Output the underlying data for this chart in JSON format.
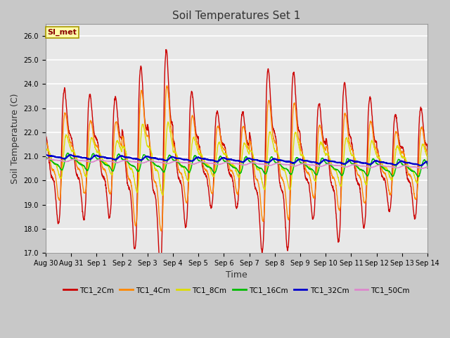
{
  "title": "Soil Temperatures Set 1",
  "xlabel": "Time",
  "ylabel": "Soil Temperature (C)",
  "ylim": [
    17.0,
    26.5
  ],
  "yticks": [
    17.0,
    18.0,
    19.0,
    20.0,
    21.0,
    22.0,
    23.0,
    24.0,
    25.0,
    26.0
  ],
  "xtick_labels": [
    "Aug 30",
    "Aug 31",
    "Sep 1",
    "Sep 2",
    "Sep 3",
    "Sep 4",
    "Sep 5",
    "Sep 6",
    "Sep 7",
    "Sep 8",
    "Sep 9",
    "Sep 10",
    "Sep 11",
    "Sep 12",
    "Sep 13",
    "Sep 14"
  ],
  "annotation_text": "SI_met",
  "fig_facecolor": "#c8c8c8",
  "plot_facecolor": "#e8e8e8",
  "series": [
    {
      "label": "TC1_2Cm",
      "color": "#cc0000",
      "lw": 1.0
    },
    {
      "label": "TC1_4Cm",
      "color": "#ff8800",
      "lw": 1.0
    },
    {
      "label": "TC1_8Cm",
      "color": "#dddd00",
      "lw": 1.0
    },
    {
      "label": "TC1_16Cm",
      "color": "#00bb00",
      "lw": 1.0
    },
    {
      "label": "TC1_32Cm",
      "color": "#0000cc",
      "lw": 1.5
    },
    {
      "label": "TC1_50Cm",
      "color": "#dd88cc",
      "lw": 1.0
    }
  ],
  "title_fontsize": 11,
  "tick_fontsize": 7,
  "ylabel_fontsize": 9,
  "xlabel_fontsize": 9
}
